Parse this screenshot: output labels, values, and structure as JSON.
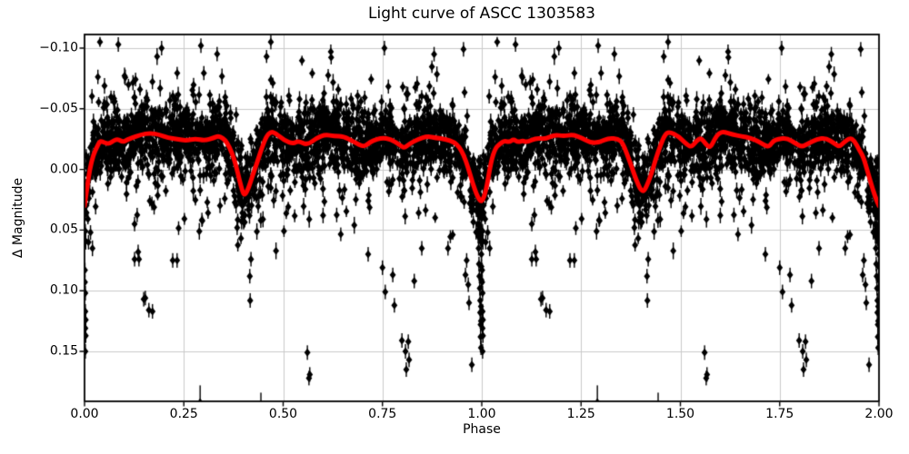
{
  "chart": {
    "title": "Light curve of ASCC 1303583",
    "xlabel": "Phase",
    "ylabel": "Δ Magnitude"
  },
  "chart_data": {
    "type": "scatter",
    "title": "Light curve of ASCC 1303583",
    "xlabel": "Phase",
    "ylabel": "Δ Magnitude",
    "xlim": [
      0.0,
      2.0
    ],
    "ylim_display": [
      0.191,
      -0.111
    ],
    "axis_inverted": true,
    "grid": true,
    "grid_color": "#cacaca",
    "x_ticks": [
      0.0,
      0.25,
      0.5,
      0.75,
      1.0,
      1.25,
      1.5,
      1.75,
      2.0
    ],
    "x_tick_labels": [
      "0.00",
      "0.25",
      "0.50",
      "0.75",
      "1.00",
      "1.25",
      "1.50",
      "1.75",
      "2.00"
    ],
    "y_ticks": [
      -0.1,
      -0.05,
      0.0,
      0.05,
      0.1,
      0.15
    ],
    "y_tick_labels": [
      "−0.10",
      "−0.05",
      "0.00",
      "0.05",
      "0.10",
      "0.15"
    ],
    "marker": {
      "shape": "diamond",
      "color": "#000000",
      "error_bars": true
    },
    "smoothed_line": {
      "color": "#ff0000",
      "width": 5,
      "points": [
        [
          0.0,
          0.03
        ],
        [
          0.006,
          0.016
        ],
        [
          0.013,
          0.0
        ],
        [
          0.022,
          -0.012
        ],
        [
          0.032,
          -0.019
        ],
        [
          0.039,
          -0.0237
        ],
        [
          0.05,
          -0.022
        ],
        [
          0.062,
          -0.021
        ],
        [
          0.074,
          -0.024
        ],
        [
          0.085,
          -0.025
        ],
        [
          0.096,
          -0.0225
        ],
        [
          0.108,
          -0.0245
        ],
        [
          0.119,
          -0.026
        ],
        [
          0.142,
          -0.0287
        ],
        [
          0.165,
          -0.03
        ],
        [
          0.188,
          -0.0287
        ],
        [
          0.211,
          -0.026
        ],
        [
          0.233,
          -0.025
        ],
        [
          0.256,
          -0.0237
        ],
        [
          0.279,
          -0.0255
        ],
        [
          0.302,
          -0.0237
        ],
        [
          0.325,
          -0.026
        ],
        [
          0.336,
          -0.0275
        ],
        [
          0.348,
          -0.026
        ],
        [
          0.359,
          -0.022
        ],
        [
          0.371,
          -0.014
        ],
        [
          0.382,
          -0.0025
        ],
        [
          0.389,
          0.0076
        ],
        [
          0.398,
          0.0188
        ],
        [
          0.403,
          0.0213
        ],
        [
          0.412,
          0.0163
        ],
        [
          0.423,
          0.005
        ],
        [
          0.435,
          -0.0062
        ],
        [
          0.446,
          -0.0175
        ],
        [
          0.458,
          -0.0274
        ],
        [
          0.469,
          -0.0311
        ],
        [
          0.481,
          -0.03
        ],
        [
          0.503,
          -0.0237
        ],
        [
          0.526,
          -0.0212
        ],
        [
          0.538,
          -0.0237
        ],
        [
          0.561,
          -0.02
        ],
        [
          0.584,
          -0.026
        ],
        [
          0.606,
          -0.0287
        ],
        [
          0.629,
          -0.0274
        ],
        [
          0.652,
          -0.0274
        ],
        [
          0.68,
          -0.0224
        ],
        [
          0.702,
          -0.0186
        ],
        [
          0.714,
          -0.0212
        ],
        [
          0.725,
          -0.0237
        ],
        [
          0.748,
          -0.026
        ],
        [
          0.771,
          -0.025
        ],
        [
          0.794,
          -0.02
        ],
        [
          0.805,
          -0.0175
        ],
        [
          0.817,
          -0.021
        ],
        [
          0.84,
          -0.025
        ],
        [
          0.863,
          -0.0274
        ],
        [
          0.885,
          -0.026
        ],
        [
          0.908,
          -0.025
        ],
        [
          0.931,
          -0.0224
        ],
        [
          0.943,
          -0.0186
        ],
        [
          0.954,
          -0.0124
        ],
        [
          0.966,
          -0.0012
        ],
        [
          0.977,
          0.0113
        ],
        [
          0.989,
          0.0225
        ],
        [
          1.0,
          0.0275
        ],
        [
          1.011,
          0.0175
        ],
        [
          1.023,
          -0.0062
        ],
        [
          1.034,
          -0.0175
        ],
        [
          1.046,
          -0.0212
        ],
        [
          1.057,
          -0.0237
        ],
        [
          1.069,
          -0.0224
        ],
        [
          1.08,
          -0.025
        ],
        [
          1.091,
          -0.0224
        ],
        [
          1.103,
          -0.0237
        ],
        [
          1.114,
          -0.0224
        ],
        [
          1.137,
          -0.026
        ],
        [
          1.16,
          -0.025
        ],
        [
          1.183,
          -0.0287
        ],
        [
          1.206,
          -0.0274
        ],
        [
          1.229,
          -0.0287
        ],
        [
          1.252,
          -0.026
        ],
        [
          1.274,
          -0.0218
        ],
        [
          1.297,
          -0.0224
        ],
        [
          1.32,
          -0.026
        ],
        [
          1.343,
          -0.025
        ],
        [
          1.354,
          -0.0224
        ],
        [
          1.366,
          -0.0124
        ],
        [
          1.377,
          -0.0025
        ],
        [
          1.389,
          0.0088
        ],
        [
          1.4,
          0.017
        ],
        [
          1.408,
          0.018
        ],
        [
          1.415,
          0.0138
        ],
        [
          1.427,
          0.0038
        ],
        [
          1.438,
          -0.0087
        ],
        [
          1.45,
          -0.02
        ],
        [
          1.461,
          -0.0287
        ],
        [
          1.472,
          -0.0311
        ],
        [
          1.495,
          -0.0274
        ],
        [
          1.518,
          -0.02
        ],
        [
          1.529,
          -0.0186
        ],
        [
          1.541,
          -0.0237
        ],
        [
          1.552,
          -0.026
        ],
        [
          1.563,
          -0.0212
        ],
        [
          1.575,
          -0.0175
        ],
        [
          1.586,
          -0.025
        ],
        [
          1.597,
          -0.03
        ],
        [
          1.609,
          -0.0311
        ],
        [
          1.631,
          -0.0287
        ],
        [
          1.654,
          -0.0274
        ],
        [
          1.677,
          -0.026
        ],
        [
          1.7,
          -0.0224
        ],
        [
          1.712,
          -0.02
        ],
        [
          1.723,
          -0.0186
        ],
        [
          1.734,
          -0.0237
        ],
        [
          1.746,
          -0.025
        ],
        [
          1.768,
          -0.026
        ],
        [
          1.791,
          -0.0212
        ],
        [
          1.806,
          -0.0186
        ],
        [
          1.821,
          -0.0212
        ],
        [
          1.844,
          -0.025
        ],
        [
          1.866,
          -0.026
        ],
        [
          1.889,
          -0.0212
        ],
        [
          1.9,
          -0.0186
        ],
        [
          1.912,
          -0.0224
        ],
        [
          1.927,
          -0.026
        ],
        [
          1.938,
          -0.0237
        ],
        [
          1.95,
          -0.0162
        ],
        [
          1.961,
          -0.01
        ],
        [
          1.972,
          0.0025
        ],
        [
          1.984,
          0.0163
        ],
        [
          1.995,
          0.0263
        ],
        [
          2.0,
          0.03
        ]
      ]
    },
    "scatter_model": {
      "seed": 1234,
      "n_points_per_cycle": 2200,
      "cycle_duplication": "points generated for phase 0-1 are replotted at phase+1",
      "baseline": "smoothed_line",
      "core_sigma_mag": 0.012,
      "mid_sigma_mag": 0.02,
      "wide_sigma_mag": 0.03,
      "faint_tail_range_mag": [
        0.02,
        0.08
      ],
      "error_bar_half_mag": [
        0.004,
        0.007
      ]
    },
    "outliers": [
      [
        0.001,
        0.083
      ],
      [
        0.001,
        0.093
      ],
      [
        0.002,
        0.102
      ],
      [
        0.002,
        0.117
      ],
      [
        0.003,
        0.124
      ],
      [
        0.002,
        0.131
      ],
      [
        0.003,
        0.137
      ],
      [
        0.002,
        0.15
      ],
      [
        0.01,
        0.06
      ],
      [
        0.015,
        0.052
      ],
      [
        0.126,
        0.045
      ],
      [
        0.126,
        0.074
      ],
      [
        0.135,
        0.068
      ],
      [
        0.137,
        0.074
      ],
      [
        0.149,
        0.107
      ],
      [
        0.153,
        0.106
      ],
      [
        0.162,
        0.116
      ],
      [
        0.171,
        0.117
      ],
      [
        0.222,
        0.075
      ],
      [
        0.233,
        0.075
      ],
      [
        0.291,
        0.192,
        0.014
      ],
      [
        0.416,
        0.088
      ],
      [
        0.417,
        0.108
      ],
      [
        0.419,
        0.074
      ],
      [
        0.444,
        0.196,
        0.012
      ],
      [
        0.561,
        0.151
      ],
      [
        0.565,
        0.172
      ],
      [
        0.567,
        0.169
      ],
      [
        0.714,
        0.07
      ],
      [
        0.75,
        0.081
      ],
      [
        0.757,
        0.101
      ],
      [
        0.776,
        0.087
      ],
      [
        0.78,
        0.112
      ],
      [
        0.799,
        0.141
      ],
      [
        0.808,
        0.15
      ],
      [
        0.81,
        0.165
      ],
      [
        0.815,
        0.142
      ],
      [
        0.817,
        0.157
      ],
      [
        0.83,
        0.092
      ],
      [
        0.849,
        0.065
      ],
      [
        0.915,
        0.065
      ],
      [
        0.959,
        0.087
      ],
      [
        0.962,
        0.075
      ],
      [
        0.966,
        0.095
      ],
      [
        0.968,
        0.11
      ],
      [
        0.975,
        0.161
      ],
      [
        0.99,
        0.045
      ],
      [
        0.991,
        0.055
      ],
      [
        0.992,
        0.065
      ],
      [
        0.993,
        0.078
      ],
      [
        0.994,
        0.088
      ],
      [
        0.995,
        0.047
      ],
      [
        0.995,
        0.098
      ],
      [
        0.996,
        0.057
      ],
      [
        0.996,
        0.108
      ],
      [
        0.996,
        0.118
      ],
      [
        0.997,
        0.128
      ],
      [
        0.997,
        0.138
      ],
      [
        0.998,
        0.035
      ],
      [
        0.998,
        0.052
      ],
      [
        0.998,
        0.113
      ],
      [
        0.998,
        0.125
      ],
      [
        0.998,
        0.147
      ],
      [
        0.999,
        0.04
      ],
      [
        0.999,
        0.06
      ],
      [
        0.999,
        0.07
      ],
      [
        0.999,
        0.08
      ],
      [
        0.999,
        0.091
      ],
      [
        0.085,
        -0.103
      ],
      [
        0.194,
        -0.1
      ],
      [
        0.293,
        -0.102
      ],
      [
        0.469,
        -0.105
      ],
      [
        0.62,
        -0.097
      ],
      [
        0.755,
        -0.1
      ],
      [
        0.88,
        -0.095
      ],
      [
        0.954,
        -0.099
      ]
    ]
  },
  "colors": {
    "marker": "#000000",
    "line": "#ff0000",
    "grid": "#cacaca",
    "background": "#ffffff",
    "spine": "#000000"
  }
}
